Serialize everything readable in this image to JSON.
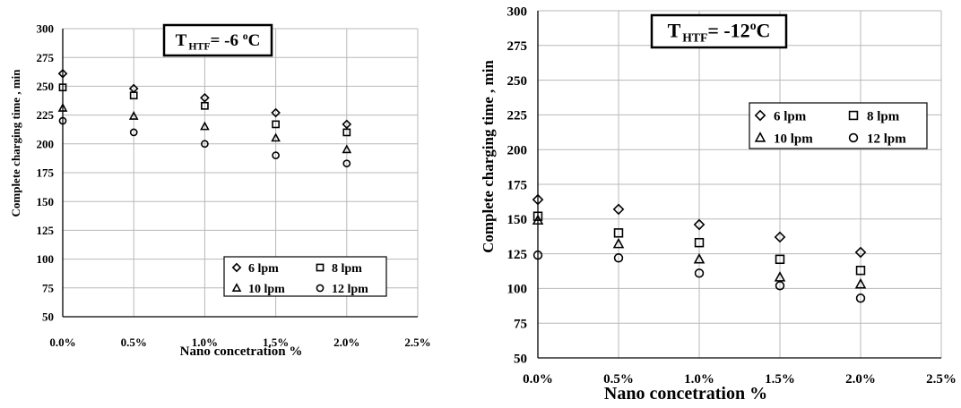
{
  "chart_data": [
    {
      "type": "scatter",
      "title": "T HTF= -6 oC",
      "title_parts": {
        "t": "T",
        "sub": "HTF",
        "eq": "= -6 ",
        "sup": "o",
        "unit": "C"
      },
      "xlabel": "Nano concetration %",
      "ylabel": "Complete charging time , min",
      "xlim": [
        0,
        2.5
      ],
      "ylim": [
        50,
        300
      ],
      "x_tick_labels": [
        "0.0%",
        "0.5%",
        "1.0%",
        "1.5%",
        "2.0%",
        "2.5%"
      ],
      "y_tick_labels": [
        "50",
        "75",
        "100",
        "125",
        "150",
        "175",
        "200",
        "225",
        "250",
        "275",
        "300"
      ],
      "grid": true,
      "legend_position": "bottom-right",
      "x": [
        0.0,
        0.5,
        1.0,
        1.5,
        2.0
      ],
      "series": [
        {
          "name": "6 lpm",
          "marker": "diamond",
          "values": [
            261,
            248,
            240,
            227,
            217
          ]
        },
        {
          "name": "8 lpm",
          "marker": "square",
          "values": [
            249,
            242,
            233,
            217,
            210
          ]
        },
        {
          "name": "10 lpm",
          "marker": "triangle",
          "values": [
            231,
            224,
            215,
            205,
            195
          ]
        },
        {
          "name": "12 lpm",
          "marker": "circle",
          "values": [
            220,
            210,
            200,
            190,
            183
          ]
        }
      ]
    },
    {
      "type": "scatter",
      "title": "T HTF= -12oC",
      "title_parts": {
        "t": "T",
        "sub": "HTF",
        "eq": "= -12",
        "sup": "o",
        "unit": "C"
      },
      "xlabel": "Nano concetration %",
      "ylabel": "Complete charging time , min",
      "xlim": [
        0,
        2.5
      ],
      "ylim": [
        50,
        300
      ],
      "x_tick_labels": [
        "0.0%",
        "0.5%",
        "1.0%",
        "1.5%",
        "2.0%",
        "2.5%"
      ],
      "y_tick_labels": [
        "50",
        "75",
        "100",
        "125",
        "150",
        "175",
        "200",
        "225",
        "250",
        "275",
        "300"
      ],
      "grid": true,
      "legend_position": "top-right",
      "x": [
        0.0,
        0.5,
        1.0,
        1.5,
        2.0
      ],
      "series": [
        {
          "name": "6 lpm",
          "marker": "diamond",
          "values": [
            164,
            157,
            146,
            137,
            126
          ]
        },
        {
          "name": "8 lpm",
          "marker": "square",
          "values": [
            152,
            140,
            133,
            121,
            113
          ]
        },
        {
          "name": "10 lpm",
          "marker": "triangle",
          "values": [
            149,
            132,
            121,
            108,
            103
          ]
        },
        {
          "name": "12 lpm",
          "marker": "circle",
          "values": [
            124,
            122,
            111,
            102,
            93
          ]
        }
      ]
    }
  ]
}
